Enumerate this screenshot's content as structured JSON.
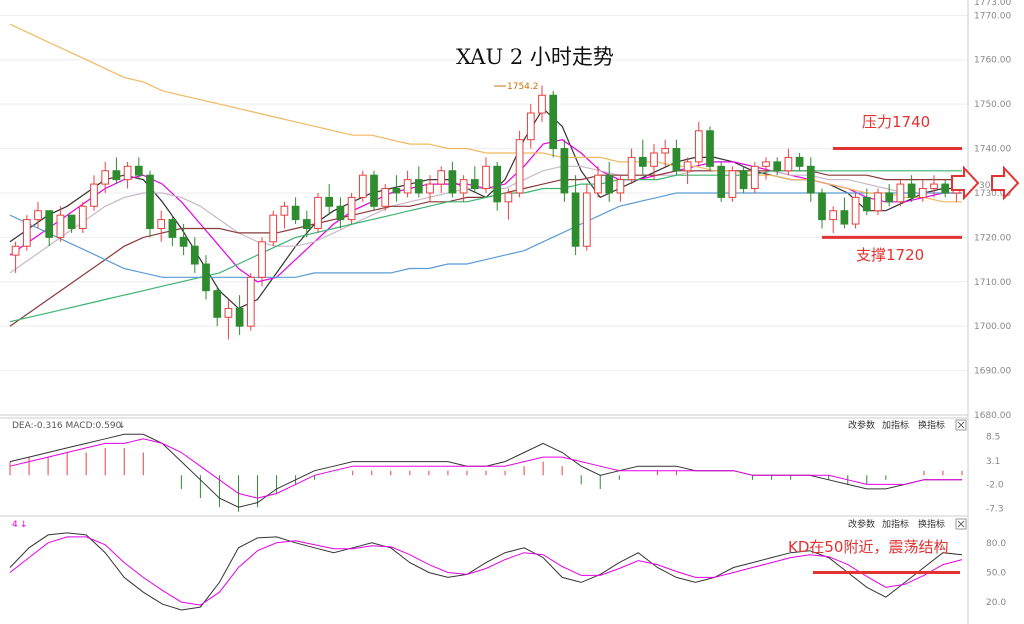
{
  "chart_data": [
    {
      "type": "candlestick",
      "title": "XAU 2 小时走势",
      "ylim": [
        1680,
        1773
      ],
      "y_ticks": [
        "1773.00",
        "1770.00",
        "1760.00",
        "1750.00",
        "1740.00",
        "1730.00",
        "1720.00",
        "1710.00",
        "1700.00",
        "1690.00",
        "1680.00"
      ],
      "peak_label": "1754.2",
      "annotations": [
        {
          "name": "resistance",
          "text": "压力1740",
          "value": 1740
        },
        {
          "name": "support",
          "text": "支撑1720",
          "value": 1720
        }
      ],
      "current_price_label": "30.",
      "candles": [
        [
          1716,
          1719,
          1712,
          1718
        ],
        [
          1718,
          1725,
          1717,
          1724
        ],
        [
          1724,
          1728,
          1722,
          1726
        ],
        [
          1726,
          1726,
          1718,
          1720
        ],
        [
          1720,
          1727,
          1719,
          1725
        ],
        [
          1725,
          1725,
          1721,
          1722
        ],
        [
          1722,
          1728,
          1721,
          1727
        ],
        [
          1727,
          1734,
          1726,
          1732
        ],
        [
          1732,
          1737,
          1730,
          1735
        ],
        [
          1735,
          1738,
          1732,
          1733
        ],
        [
          1733,
          1737,
          1731,
          1736
        ],
        [
          1736,
          1738,
          1733,
          1734
        ],
        [
          1734,
          1735,
          1720,
          1722
        ],
        [
          1722,
          1726,
          1719,
          1724
        ],
        [
          1724,
          1725,
          1718,
          1720
        ],
        [
          1720,
          1723,
          1716,
          1718
        ],
        [
          1718,
          1720,
          1712,
          1714
        ],
        [
          1714,
          1716,
          1706,
          1708
        ],
        [
          1708,
          1709,
          1700,
          1702
        ],
        [
          1702,
          1706,
          1697,
          1704
        ],
        [
          1704,
          1707,
          1698,
          1700
        ],
        [
          1700,
          1712,
          1699,
          1711
        ],
        [
          1711,
          1720,
          1709,
          1719
        ],
        [
          1719,
          1726,
          1718,
          1725
        ],
        [
          1725,
          1728,
          1722,
          1727
        ],
        [
          1727,
          1729,
          1723,
          1724
        ],
        [
          1724,
          1726,
          1720,
          1722
        ],
        [
          1722,
          1730,
          1721,
          1729
        ],
        [
          1729,
          1732,
          1725,
          1727
        ],
        [
          1727,
          1729,
          1722,
          1724
        ],
        [
          1724,
          1730,
          1723,
          1729
        ],
        [
          1729,
          1735,
          1728,
          1734
        ],
        [
          1734,
          1735,
          1726,
          1727
        ],
        [
          1727,
          1732,
          1726,
          1731
        ],
        [
          1731,
          1734,
          1728,
          1730
        ],
        [
          1730,
          1735,
          1729,
          1733
        ],
        [
          1733,
          1736,
          1729,
          1730
        ],
        [
          1730,
          1734,
          1728,
          1732
        ],
        [
          1732,
          1736,
          1730,
          1735
        ],
        [
          1735,
          1737,
          1729,
          1730
        ],
        [
          1730,
          1734,
          1728,
          1733
        ],
        [
          1733,
          1736,
          1730,
          1731
        ],
        [
          1731,
          1738,
          1730,
          1736
        ],
        [
          1736,
          1737,
          1726,
          1728
        ],
        [
          1728,
          1731,
          1724,
          1730
        ],
        [
          1730,
          1744,
          1729,
          1742
        ],
        [
          1742,
          1750,
          1740,
          1748
        ],
        [
          1748,
          1754.2,
          1746,
          1752
        ],
        [
          1752,
          1753,
          1738,
          1740
        ],
        [
          1740,
          1742,
          1728,
          1730
        ],
        [
          1730,
          1734,
          1716,
          1718
        ],
        [
          1718,
          1732,
          1717,
          1730
        ],
        [
          1730,
          1736,
          1729,
          1734
        ],
        [
          1734,
          1737,
          1728,
          1730
        ],
        [
          1730,
          1734,
          1728,
          1733
        ],
        [
          1733,
          1740,
          1732,
          1738
        ],
        [
          1738,
          1742,
          1734,
          1736
        ],
        [
          1736,
          1741,
          1733,
          1739
        ],
        [
          1739,
          1742,
          1736,
          1740
        ],
        [
          1740,
          1742,
          1734,
          1735
        ],
        [
          1735,
          1738,
          1732,
          1737
        ],
        [
          1737,
          1746,
          1736,
          1744
        ],
        [
          1744,
          1745,
          1735,
          1736
        ],
        [
          1736,
          1737,
          1728,
          1729
        ],
        [
          1729,
          1736,
          1728,
          1735
        ],
        [
          1735,
          1736,
          1730,
          1731
        ],
        [
          1731,
          1737,
          1730,
          1736
        ],
        [
          1736,
          1738,
          1733,
          1737
        ],
        [
          1737,
          1738,
          1734,
          1735
        ],
        [
          1735,
          1740,
          1734,
          1738
        ],
        [
          1738,
          1739,
          1735,
          1736
        ],
        [
          1736,
          1738,
          1728,
          1730
        ],
        [
          1730,
          1731,
          1722,
          1724
        ],
        [
          1724,
          1727,
          1721,
          1726
        ],
        [
          1726,
          1729,
          1722,
          1723
        ],
        [
          1723,
          1730,
          1722,
          1729
        ],
        [
          1729,
          1731,
          1725,
          1726
        ],
        [
          1726,
          1731,
          1725,
          1730
        ],
        [
          1730,
          1732,
          1727,
          1728
        ],
        [
          1728,
          1733,
          1727,
          1732
        ],
        [
          1732,
          1734,
          1728,
          1729
        ],
        [
          1729,
          1733,
          1728,
          1731
        ],
        [
          1731,
          1734,
          1729,
          1732
        ],
        [
          1732,
          1733,
          1729,
          1730
        ],
        [
          1730,
          1732,
          1728,
          1731
        ]
      ],
      "moving_averages": [
        {
          "color": "#333333",
          "values": [
            1719,
            1722,
            1725,
            1727,
            1730,
            1733,
            1734,
            1733,
            1728,
            1722,
            1715,
            1708,
            1704,
            1706,
            1712,
            1718,
            1723,
            1726,
            1728,
            1730,
            1731,
            1732,
            1733,
            1733,
            1731,
            1729,
            1733,
            1742,
            1749,
            1745,
            1735,
            1729,
            1731,
            1733,
            1735,
            1737,
            1738,
            1738,
            1737,
            1735,
            1734,
            1733,
            1733,
            1732,
            1730,
            1726,
            1726,
            1728,
            1730,
            1731,
            1731
          ]
        },
        {
          "color": "#e600e6",
          "values": [
            1716,
            1719,
            1722,
            1725,
            1728,
            1731,
            1733,
            1734,
            1732,
            1728,
            1723,
            1718,
            1713,
            1710,
            1711,
            1715,
            1719,
            1723,
            1726,
            1728,
            1730,
            1731,
            1732,
            1732,
            1732,
            1731,
            1732,
            1736,
            1741,
            1742,
            1739,
            1735,
            1733,
            1733,
            1734,
            1735,
            1736,
            1737,
            1737,
            1736,
            1735,
            1734,
            1733,
            1732,
            1731,
            1729,
            1728,
            1728,
            1729,
            1730,
            1730
          ]
        },
        {
          "color": "#c8b8c8",
          "values": [
            1712,
            1715,
            1718,
            1721,
            1724,
            1727,
            1729,
            1730,
            1730,
            1729,
            1727,
            1724,
            1721,
            1719,
            1718,
            1718,
            1719,
            1721,
            1723,
            1725,
            1727,
            1728,
            1729,
            1730,
            1731,
            1731,
            1731,
            1733,
            1735,
            1736,
            1736,
            1735,
            1734,
            1734,
            1734,
            1734,
            1735,
            1735,
            1735,
            1735,
            1735,
            1734,
            1734,
            1733,
            1733,
            1732,
            1731,
            1730,
            1730,
            1730,
            1730
          ]
        },
        {
          "color": "#8b3a3a",
          "values": [
            1700,
            1703,
            1706,
            1709,
            1712,
            1715,
            1718,
            1720,
            1721,
            1722,
            1722,
            1722,
            1721,
            1721,
            1721,
            1722,
            1723,
            1724,
            1725,
            1726,
            1727,
            1727,
            1728,
            1728,
            1729,
            1729,
            1730,
            1731,
            1732,
            1733,
            1733,
            1734,
            1734,
            1734,
            1734,
            1735,
            1735,
            1735,
            1735,
            1735,
            1735,
            1735,
            1735,
            1734,
            1734,
            1734,
            1733,
            1733,
            1733,
            1733,
            1733
          ]
        },
        {
          "color": "#3cb371",
          "values": [
            1701,
            1702,
            1703,
            1704,
            1705,
            1706,
            1707,
            1708,
            1709,
            1710,
            1711,
            1712,
            1714,
            1716,
            1718,
            1720,
            1721,
            1722,
            1723,
            1724,
            1725,
            1726,
            1727,
            1728,
            1728,
            1729,
            1730,
            1730,
            1731,
            1731,
            1732,
            1732,
            1733,
            1733,
            1733,
            1734,
            1734,
            1734,
            1734,
            1734,
            1735,
            1735,
            1735,
            1735,
            1735,
            1735,
            1735,
            1735,
            1735,
            1735,
            1735
          ]
        },
        {
          "color": "#5b9bd5",
          "values": [
            1725,
            1723,
            1721,
            1719,
            1717,
            1715,
            1713,
            1712,
            1711,
            1711,
            1711,
            1711,
            1711,
            1711,
            1711,
            1711,
            1712,
            1712,
            1712,
            1712,
            1712,
            1713,
            1713,
            1714,
            1714,
            1715,
            1716,
            1717,
            1719,
            1721,
            1723,
            1725,
            1727,
            1728,
            1729,
            1730,
            1730,
            1730,
            1730,
            1730,
            1730,
            1730,
            1730,
            1730,
            1730,
            1730,
            1730,
            1730,
            1730,
            1730,
            1730
          ]
        },
        {
          "color": "#f0b860",
          "values": [
            1768,
            1766,
            1764,
            1762,
            1760,
            1758,
            1756,
            1755,
            1753,
            1752,
            1751,
            1750,
            1749,
            1748,
            1747,
            1746,
            1745,
            1744,
            1743,
            1743,
            1742,
            1741,
            1741,
            1740,
            1740,
            1739,
            1739,
            1739,
            1739,
            1738,
            1738,
            1738,
            1737,
            1737,
            1737,
            1736,
            1736,
            1735,
            1735,
            1734,
            1734,
            1733,
            1733,
            1732,
            1731,
            1730,
            1730,
            1729,
            1729,
            1728,
            1728
          ]
        }
      ]
    },
    {
      "type": "macd",
      "header": "DEA:-0.316 MACD:0.590",
      "y_ticks": [
        "8.5",
        "3.1",
        "-2.0",
        "-7.3"
      ],
      "ylim": [
        -8.5,
        9.5
      ],
      "buttons": [
        "改参数",
        "加指标",
        "换指标"
      ],
      "dif": [
        3,
        4,
        5,
        6,
        7,
        8,
        9,
        9,
        7,
        3,
        -1,
        -5,
        -7,
        -6,
        -3,
        -1,
        1,
        2,
        3,
        3,
        3,
        3,
        3,
        3,
        2,
        2,
        3,
        5,
        7,
        5,
        2,
        0,
        1,
        2,
        2,
        2,
        1,
        1,
        1,
        0,
        0,
        0,
        0,
        -1,
        -2,
        -3,
        -3,
        -2,
        -1,
        -1,
        -1
      ],
      "dea": [
        2,
        3,
        4,
        5,
        6,
        7,
        7,
        8,
        7,
        5,
        2,
        -1,
        -4,
        -5,
        -4,
        -2,
        0,
        1,
        2,
        2,
        2,
        2,
        2,
        2,
        2,
        2,
        2,
        3,
        4,
        4,
        3,
        2,
        1,
        1,
        1,
        1,
        1,
        1,
        1,
        0,
        0,
        0,
        0,
        0,
        -1,
        -2,
        -2,
        -2,
        -1,
        -1,
        -1
      ],
      "hist": [
        3,
        4,
        4,
        5,
        5,
        6,
        6,
        5,
        0,
        -3,
        -5,
        -7,
        -8,
        -7,
        -4,
        -2,
        -1,
        0,
        1,
        1,
        1,
        1,
        1,
        1,
        1,
        1,
        1,
        2,
        3,
        2,
        -2,
        -3,
        -1,
        0,
        1,
        1,
        0,
        0,
        0,
        -1,
        -1,
        -1,
        0,
        -1,
        -2,
        -2,
        -1,
        0,
        1,
        1,
        1
      ]
    },
    {
      "type": "kd",
      "header": "4",
      "y_ticks": [
        "80.0",
        "50.0",
        "20.0"
      ],
      "ylim": [
        10,
        95
      ],
      "buttons": [
        "改参数",
        "加指标",
        "换指标"
      ],
      "annotation": "KD在50附近，震荡结构",
      "reference_level": 50,
      "k": [
        55,
        75,
        88,
        90,
        88,
        70,
        45,
        30,
        18,
        12,
        15,
        40,
        75,
        85,
        86,
        80,
        75,
        70,
        75,
        80,
        75,
        60,
        50,
        45,
        48,
        60,
        70,
        75,
        65,
        45,
        40,
        48,
        60,
        70,
        55,
        45,
        40,
        45,
        55,
        60,
        65,
        70,
        72,
        65,
        50,
        35,
        25,
        40,
        55,
        70,
        68
      ],
      "d": [
        50,
        65,
        80,
        86,
        86,
        78,
        60,
        45,
        32,
        20,
        17,
        30,
        55,
        72,
        80,
        82,
        78,
        74,
        74,
        77,
        76,
        68,
        58,
        50,
        48,
        54,
        63,
        70,
        68,
        56,
        47,
        47,
        54,
        62,
        58,
        51,
        45,
        45,
        50,
        55,
        60,
        65,
        68,
        66,
        58,
        46,
        35,
        38,
        47,
        58,
        63
      ]
    }
  ]
}
